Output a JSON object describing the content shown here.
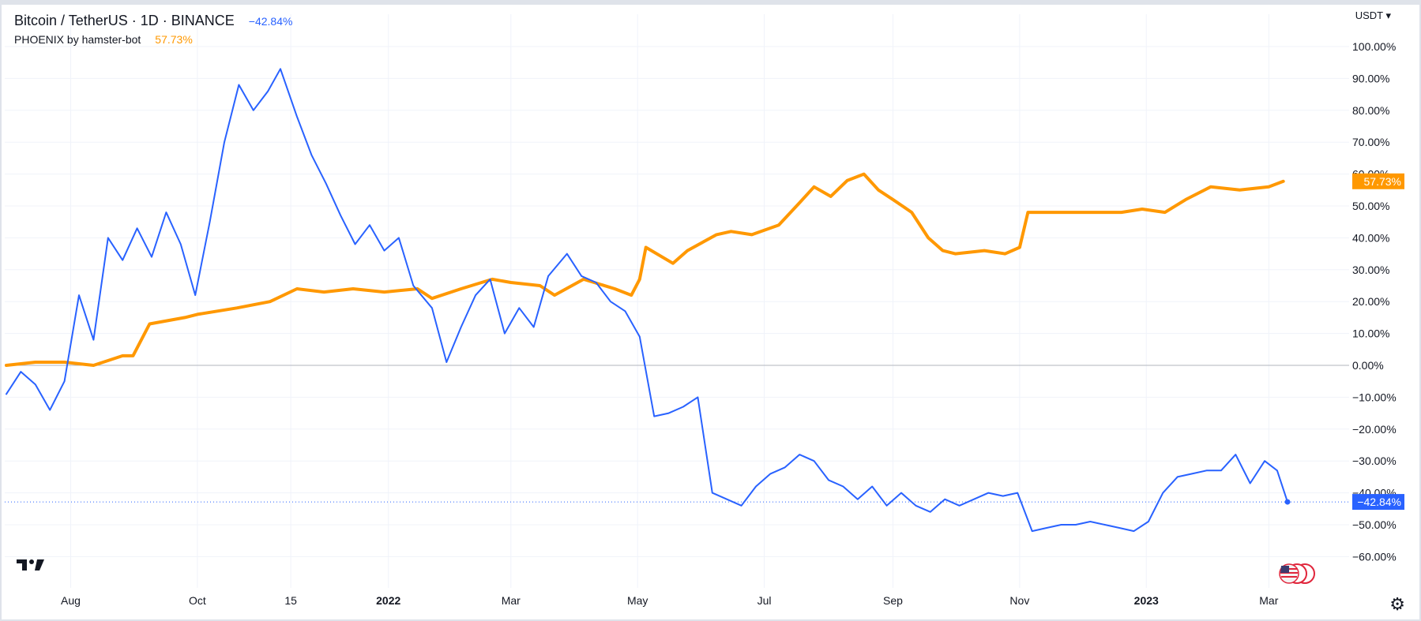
{
  "legend": {
    "symbol": "Bitcoin / TetherUS · 1D · BINANCE",
    "symbol_change": "−42.84%",
    "indicator": "PHOENIX by hamster-bot",
    "indicator_value": "57.73%"
  },
  "header": {
    "currency": "USDT ▾"
  },
  "icons": {
    "settings": "gear-icon",
    "logo": "tradingview-logo-icon",
    "flags": "us-flag-icons"
  },
  "colors": {
    "btc": "#2962ff",
    "phoenix": "#ff9800",
    "btc_label_bg": "#2962ff",
    "phoenix_label_bg": "#ff9800"
  },
  "chart_data": {
    "type": "line",
    "y_unit": "%",
    "ylim": [
      -65,
      105
    ],
    "y_ticks": [
      "100.00%",
      "90.00%",
      "80.00%",
      "70.00%",
      "60.00%",
      "50.00%",
      "40.00%",
      "30.00%",
      "20.00%",
      "10.00%",
      "0.00%",
      "−10.00%",
      "−20.00%",
      "−30.00%",
      "−40.00%",
      "−50.00%",
      "−60.00%"
    ],
    "x_ticks": [
      "Aug",
      "Oct",
      "15",
      "2022",
      "Mar",
      "May",
      "Jul",
      "Sep",
      "Nov",
      "2023",
      "Mar"
    ],
    "x_ticks_bold": [
      "2022",
      "2023"
    ],
    "grid": true,
    "last_value_labels": {
      "btc": "−42.84%",
      "phoenix": "57.73%"
    },
    "series": [
      {
        "name": "Bitcoin / TetherUS",
        "color": "#2962ff",
        "x": [
          "2021-07-01",
          "2021-07-08",
          "2021-07-15",
          "2021-07-22",
          "2021-07-29",
          "2021-08-05",
          "2021-08-12",
          "2021-08-19",
          "2021-08-26",
          "2021-09-02",
          "2021-09-09",
          "2021-09-16",
          "2021-09-23",
          "2021-09-30",
          "2021-10-07",
          "2021-10-14",
          "2021-10-21",
          "2021-10-28",
          "2021-11-04",
          "2021-11-10",
          "2021-11-18",
          "2021-11-25",
          "2021-12-02",
          "2021-12-09",
          "2021-12-16",
          "2021-12-23",
          "2021-12-30",
          "2022-01-06",
          "2022-01-13",
          "2022-01-22",
          "2022-01-29",
          "2022-02-05",
          "2022-02-12",
          "2022-02-19",
          "2022-02-26",
          "2022-03-05",
          "2022-03-12",
          "2022-03-19",
          "2022-03-28",
          "2022-04-04",
          "2022-04-11",
          "2022-04-18",
          "2022-04-25",
          "2022-05-02",
          "2022-05-09",
          "2022-05-16",
          "2022-05-23",
          "2022-05-30",
          "2022-06-06",
          "2022-06-13",
          "2022-06-20",
          "2022-06-27",
          "2022-07-04",
          "2022-07-11",
          "2022-07-18",
          "2022-07-25",
          "2022-08-01",
          "2022-08-08",
          "2022-08-15",
          "2022-08-22",
          "2022-08-29",
          "2022-09-05",
          "2022-09-12",
          "2022-09-19",
          "2022-09-26",
          "2022-10-03",
          "2022-10-10",
          "2022-10-17",
          "2022-10-24",
          "2022-10-31",
          "2022-11-07",
          "2022-11-14",
          "2022-11-21",
          "2022-11-28",
          "2022-12-05",
          "2022-12-12",
          "2022-12-19",
          "2022-12-26",
          "2023-01-02",
          "2023-01-09",
          "2023-01-16",
          "2023-01-23",
          "2023-01-30",
          "2023-02-06",
          "2023-02-13",
          "2023-02-20",
          "2023-02-27",
          "2023-03-05",
          "2023-03-10"
        ],
        "y": [
          -9,
          -2,
          -6,
          -14,
          -5,
          22,
          8,
          40,
          33,
          43,
          34,
          48,
          38,
          22,
          45,
          70,
          88,
          80,
          86,
          93,
          78,
          66,
          57,
          47,
          38,
          44,
          36,
          40,
          25,
          18,
          1,
          12,
          22,
          27,
          10,
          18,
          12,
          28,
          35,
          28,
          26,
          20,
          17,
          9,
          -16,
          -15,
          -13,
          -10,
          -40,
          -42,
          -44,
          -38,
          -34,
          -32,
          -28,
          -30,
          -36,
          -38,
          -42,
          -38,
          -44,
          -40,
          -44,
          -46,
          -42,
          -44,
          -42,
          -40,
          -41,
          -40,
          -52,
          -51,
          -50,
          -50,
          -49,
          -50,
          -51,
          -52,
          -49,
          -40,
          -35,
          -34,
          -33,
          -33,
          -28,
          -37,
          -30,
          -33,
          -42.84
        ]
      },
      {
        "name": "PHOENIX by hamster-bot",
        "color": "#ff9800",
        "x": [
          "2021-07-01",
          "2021-07-15",
          "2021-07-29",
          "2021-08-12",
          "2021-08-26",
          "2021-08-31",
          "2021-09-08",
          "2021-09-25",
          "2021-10-01",
          "2021-10-20",
          "2021-11-05",
          "2021-11-18",
          "2021-12-01",
          "2021-12-15",
          "2021-12-30",
          "2022-01-15",
          "2022-01-22",
          "2022-02-05",
          "2022-02-20",
          "2022-03-01",
          "2022-03-15",
          "2022-03-22",
          "2022-04-05",
          "2022-04-20",
          "2022-04-28",
          "2022-05-02",
          "2022-05-05",
          "2022-05-18",
          "2022-05-25",
          "2022-06-08",
          "2022-06-15",
          "2022-06-25",
          "2022-07-08",
          "2022-07-18",
          "2022-07-25",
          "2022-08-02",
          "2022-08-10",
          "2022-08-18",
          "2022-08-25",
          "2022-09-01",
          "2022-09-10",
          "2022-09-18",
          "2022-09-25",
          "2022-10-01",
          "2022-10-15",
          "2022-10-25",
          "2022-11-01",
          "2022-11-05",
          "2022-11-25",
          "2022-12-20",
          "2022-12-30",
          "2023-01-10",
          "2023-01-20",
          "2023-02-01",
          "2023-02-15",
          "2023-03-01",
          "2023-03-08"
        ],
        "y": [
          0,
          1,
          1,
          0,
          3,
          3,
          13,
          15,
          16,
          18,
          20,
          24,
          23,
          24,
          23,
          24,
          21,
          24,
          27,
          26,
          25,
          22,
          27,
          24,
          22,
          27,
          37,
          32,
          36,
          41,
          42,
          41,
          44,
          51,
          56,
          53,
          58,
          60,
          55,
          52,
          48,
          40,
          36,
          35,
          36,
          35,
          37,
          48,
          48,
          48,
          49,
          48,
          52,
          56,
          55,
          56,
          57.73
        ]
      }
    ]
  }
}
